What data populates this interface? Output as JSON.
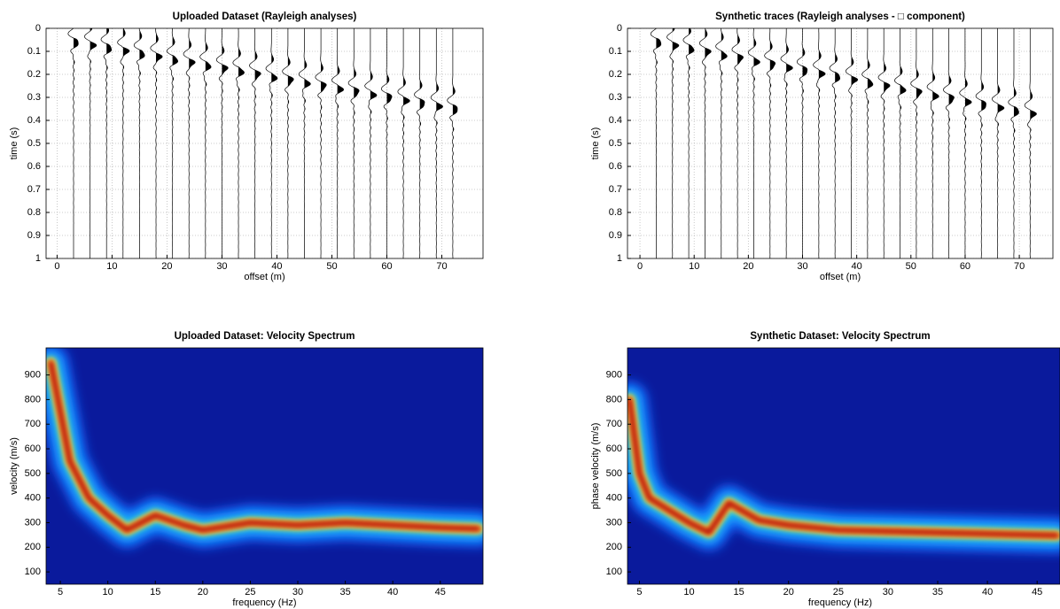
{
  "chart_data": [
    {
      "type": "wiggle",
      "title": "Uploaded Dataset (Rayleigh analyses)",
      "xlabel": "offset (m)",
      "ylabel": "time (s)",
      "xlim": [
        -2,
        77.5
      ],
      "ylim": [
        1,
        0
      ],
      "xticks": [
        0,
        10,
        20,
        30,
        40,
        50,
        60,
        70
      ],
      "yticks": [
        0,
        0.1,
        0.2,
        0.3,
        0.4,
        0.5,
        0.6,
        0.7,
        0.8,
        0.9,
        1
      ],
      "grid": true,
      "x": [
        3,
        6,
        9,
        12,
        15,
        18,
        21,
        24,
        27,
        30,
        33,
        36,
        39,
        42,
        45,
        48,
        51,
        54,
        57,
        60,
        63,
        66,
        69,
        72
      ]
    },
    {
      "type": "wiggle",
      "title": "Synthetic traces (Rayleigh analyses - □ component)",
      "xlabel": "offset (m)",
      "ylabel": "time (s)",
      "xlim": [
        -2.3,
        76.2
      ],
      "ylim": [
        1,
        0
      ],
      "xticks": [
        0,
        10,
        20,
        30,
        40,
        50,
        60,
        70
      ],
      "yticks": [
        0,
        0.1,
        0.2,
        0.3,
        0.4,
        0.5,
        0.6,
        0.7,
        0.8,
        0.9,
        1
      ],
      "grid": true,
      "x": [
        3,
        6,
        9,
        12,
        15,
        18,
        21,
        24,
        27,
        30,
        33,
        36,
        39,
        42,
        45,
        48,
        51,
        54,
        57,
        60,
        63,
        66,
        69,
        72
      ]
    },
    {
      "type": "heatmap",
      "title": "Uploaded Dataset: Velocity Spectrum",
      "xlabel": "frequency (Hz)",
      "ylabel": "velocity (m/s)",
      "xlim": [
        3.5,
        49.5
      ],
      "ylim": [
        50,
        1010
      ],
      "xticks": [
        5,
        10,
        15,
        20,
        25,
        30,
        35,
        40,
        45
      ],
      "yticks": [
        100,
        200,
        300,
        400,
        500,
        600,
        700,
        800,
        900
      ],
      "x": [
        4,
        5,
        6,
        8,
        10,
        12,
        15,
        18,
        20,
        25,
        30,
        35,
        40,
        45,
        49
      ],
      "values": [
        950,
        750,
        550,
        400,
        330,
        270,
        330,
        290,
        270,
        300,
        290,
        300,
        290,
        280,
        275
      ]
    },
    {
      "type": "heatmap",
      "title": "Synthetic Dataset: Velocity Spectrum",
      "xlabel": "frequency (Hz)",
      "ylabel": "phase velocity (m/s)",
      "xlim": [
        3.8,
        47.3
      ],
      "ylim": [
        50,
        1010
      ],
      "xticks": [
        5,
        10,
        15,
        20,
        25,
        30,
        35,
        40,
        45
      ],
      "yticks": [
        100,
        200,
        300,
        400,
        500,
        600,
        700,
        800,
        900
      ],
      "x": [
        4,
        5,
        6,
        8,
        10,
        12,
        14,
        17,
        20,
        25,
        30,
        35,
        40,
        45,
        47
      ],
      "values": [
        800,
        500,
        400,
        350,
        300,
        260,
        380,
        310,
        290,
        270,
        265,
        260,
        255,
        250,
        248
      ]
    }
  ]
}
